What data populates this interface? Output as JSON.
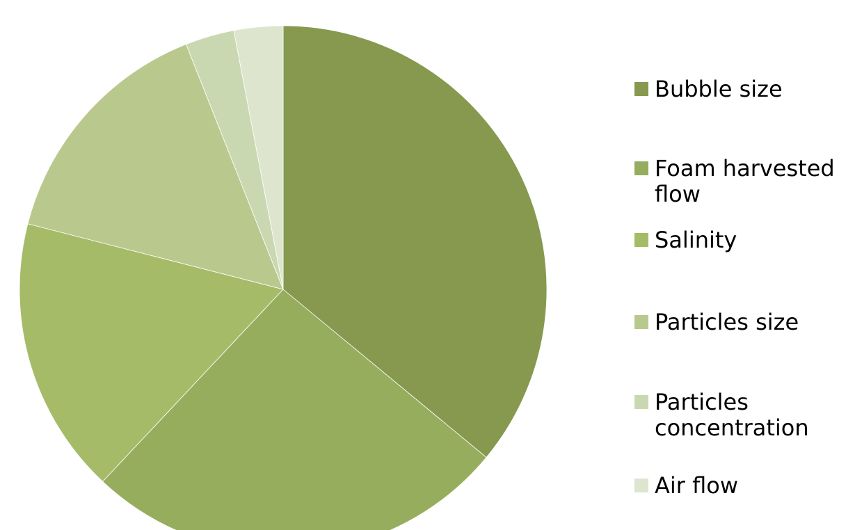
{
  "chart_data": {
    "type": "pie",
    "categories": [
      "Bubble size",
      "Foam harvested flow",
      "Salinity",
      "Particles size",
      "Particles concentration",
      "Air flow"
    ],
    "values": [
      36,
      26,
      17,
      15,
      3,
      3
    ],
    "colors": [
      "#86994f",
      "#97ad5e",
      "#a6bb68",
      "#b9c98e",
      "#cad8b1",
      "#dde5cf"
    ],
    "legend": "right"
  }
}
